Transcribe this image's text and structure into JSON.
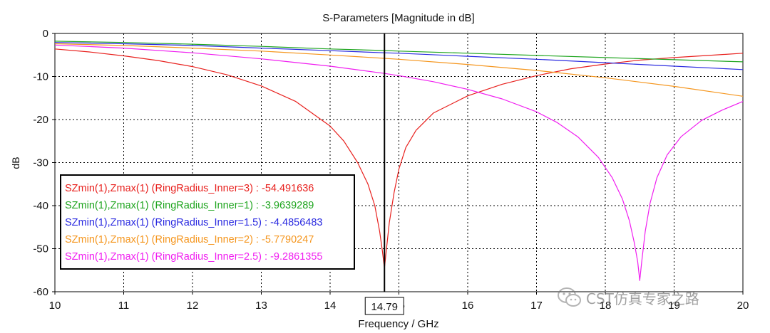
{
  "chart_data": {
    "type": "line",
    "title": "S-Parameters [Magnitude in dB]",
    "xlabel": "Frequency / GHz",
    "ylabel": "dB",
    "xlim": [
      10,
      20
    ],
    "ylim": [
      -60,
      0
    ],
    "xticks": [
      "10",
      "11",
      "12",
      "13",
      "14",
      "15",
      "16",
      "17",
      "18",
      "19",
      "20"
    ],
    "yticks": [
      "0",
      "-10",
      "-20",
      "-30",
      "-40",
      "-50",
      "-60"
    ],
    "grid": true,
    "marker": {
      "x": 14.79,
      "label": "14.79"
    },
    "legend_position": "bottom-left",
    "series": [
      {
        "name": "SZmin(1),Zmax(1) (RingRadius_Inner=3)",
        "legend": "SZmin(1),Zmax(1) (RingRadius_Inner=3) : -54.491636",
        "color": "#e8211e",
        "x": [
          10,
          10.5,
          11,
          11.5,
          12,
          12.5,
          13,
          13.5,
          14,
          14.2,
          14.4,
          14.55,
          14.65,
          14.72,
          14.76,
          14.79,
          14.82,
          14.86,
          14.93,
          15.0,
          15.1,
          15.25,
          15.5,
          16,
          16.5,
          17,
          17.5,
          18,
          18.5,
          19,
          19.5,
          20
        ],
        "y": [
          -3.6,
          -4.3,
          -5.2,
          -6.3,
          -7.7,
          -9.6,
          -12.2,
          -15.8,
          -21.5,
          -25,
          -30,
          -35,
          -40,
          -46,
          -50.5,
          -54.5,
          -50,
          -44,
          -37,
          -31.5,
          -26.5,
          -22.5,
          -18.5,
          -14.5,
          -11.8,
          -9.8,
          -8.2,
          -7.1,
          -6.2,
          -5.6,
          -5.1,
          -4.6
        ]
      },
      {
        "name": "SZmin(1),Zmax(1) (RingRadius_Inner=1)",
        "legend": "SZmin(1),Zmax(1) (RingRadius_Inner=1) : -3.9639289",
        "color": "#1fa51f",
        "x": [
          10,
          11,
          12,
          13,
          14,
          14.79,
          15,
          16,
          17,
          18,
          19,
          20
        ],
        "y": [
          -1.8,
          -2.1,
          -2.5,
          -3.0,
          -3.6,
          -3.96,
          -4.1,
          -4.6,
          -5.1,
          -5.6,
          -6.1,
          -6.6
        ]
      },
      {
        "name": "SZmin(1),Zmax(1) (RingRadius_Inner=1.5)",
        "legend": "SZmin(1),Zmax(1) (RingRadius_Inner=1.5) : -4.4856483",
        "color": "#2a2ae0",
        "x": [
          10,
          11,
          12,
          13,
          14,
          14.79,
          15,
          16,
          17,
          18,
          19,
          20
        ],
        "y": [
          -2.1,
          -2.4,
          -2.8,
          -3.4,
          -4.0,
          -4.49,
          -4.6,
          -5.3,
          -6.0,
          -6.8,
          -7.6,
          -8.4
        ]
      },
      {
        "name": "SZmin(1),Zmax(1) (RingRadius_Inner=2)",
        "legend": "SZmin(1),Zmax(1) (RingRadius_Inner=2) : -5.7790247",
        "color": "#f5961e",
        "x": [
          10,
          11,
          12,
          13,
          14,
          14.79,
          15,
          16,
          17,
          18,
          19,
          20
        ],
        "y": [
          -2.4,
          -2.8,
          -3.4,
          -4.1,
          -5.0,
          -5.78,
          -6.0,
          -7.2,
          -8.6,
          -10.3,
          -12.3,
          -14.6
        ]
      },
      {
        "name": "SZmin(1),Zmax(1) (RingRadius_Inner=2.5)",
        "legend": "SZmin(1),Zmax(1) (RingRadius_Inner=2.5) : -9.2861355",
        "color": "#f01ef0",
        "x": [
          10,
          11,
          12,
          13,
          14,
          14.79,
          15,
          15.5,
          16,
          16.5,
          17,
          17.3,
          17.6,
          17.9,
          18.1,
          18.25,
          18.35,
          18.42,
          18.47,
          18.5,
          18.53,
          18.58,
          18.65,
          18.75,
          18.9,
          19.1,
          19.4,
          19.7,
          20
        ],
        "y": [
          -2.7,
          -3.4,
          -4.5,
          -5.9,
          -7.6,
          -9.29,
          -9.8,
          -11.2,
          -13,
          -15.2,
          -18.2,
          -20.7,
          -24,
          -28.8,
          -33.5,
          -38.5,
          -43.5,
          -48.5,
          -53,
          -57.4,
          -53,
          -46,
          -39.5,
          -33.5,
          -28.2,
          -24,
          -20.2,
          -17.8,
          -15.8
        ]
      }
    ]
  },
  "watermark": {
    "text": "CST仿真专家之路",
    "icon": "wechat-icon"
  }
}
